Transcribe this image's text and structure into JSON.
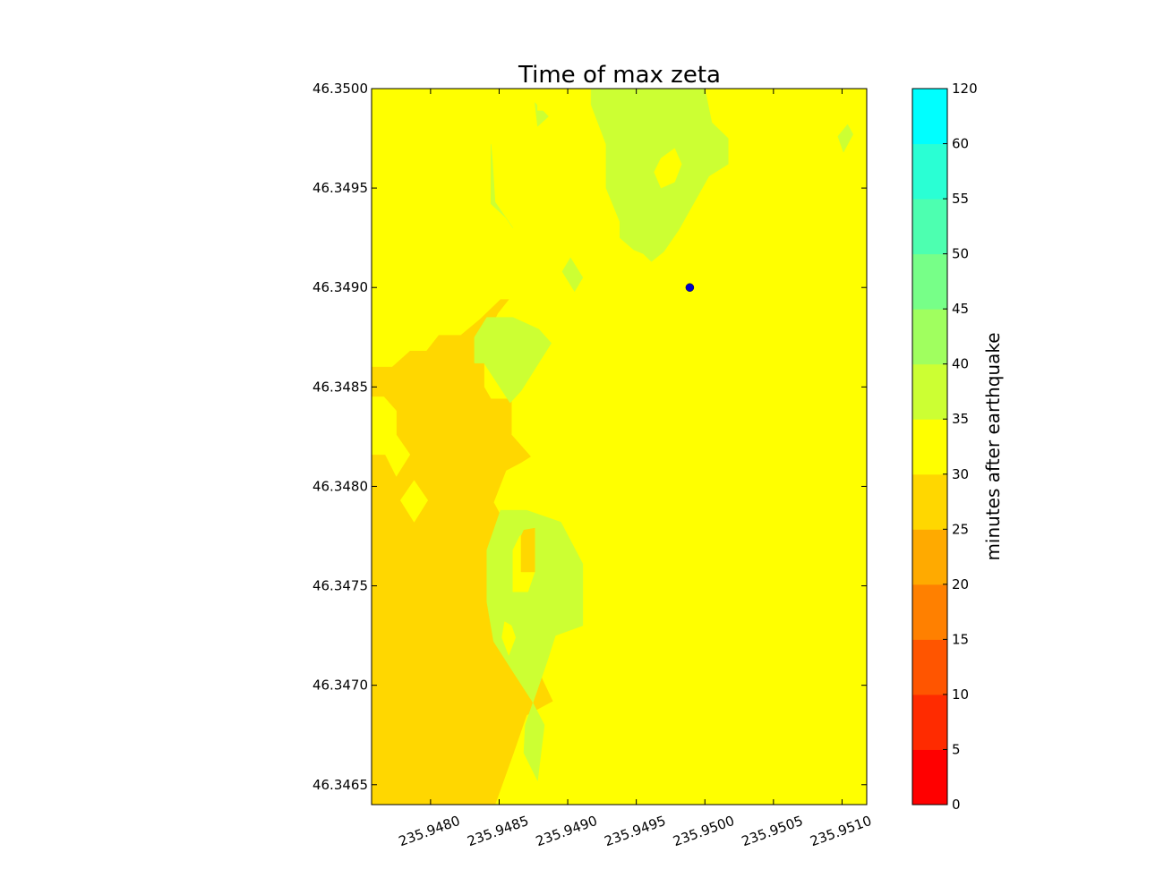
{
  "chart_data": {
    "type": "filled-contour",
    "title": "Time of max zeta",
    "xlabel": "",
    "ylabel": "",
    "xlim": [
      235.94757,
      235.95118
    ],
    "ylim": [
      46.3464,
      46.35
    ],
    "x_ticks": [
      235.948,
      235.9485,
      235.949,
      235.9495,
      235.95,
      235.9505,
      235.951
    ],
    "x_tick_labels": [
      "235.9480",
      "235.9485",
      "235.9490",
      "235.9495",
      "235.9500",
      "235.9505",
      "235.9510"
    ],
    "y_ticks": [
      46.3465,
      46.347,
      46.3475,
      46.348,
      46.3485,
      46.349,
      46.3495,
      46.35
    ],
    "y_tick_labels": [
      "46.3465",
      "46.3470",
      "46.3475",
      "46.3480",
      "46.3485",
      "46.3490",
      "46.3495",
      "46.3500"
    ],
    "background_level": {
      "range": [
        30,
        35
      ],
      "color": "#ffff00"
    },
    "regions": [
      {
        "level": [
          25,
          30
        ],
        "color": "#ffd700",
        "polygon": [
          [
            235.94757,
            46.3464
          ],
          [
            235.94757,
            46.3486
          ],
          [
            235.94772,
            46.3486
          ],
          [
            235.94785,
            46.34868
          ],
          [
            235.94797,
            46.34868
          ],
          [
            235.94806,
            46.34876
          ],
          [
            235.94822,
            46.34876
          ],
          [
            235.94836,
            46.34884
          ],
          [
            235.94851,
            46.34894
          ],
          [
            235.94857,
            46.34894
          ],
          [
            235.94849,
            46.34887
          ],
          [
            235.94841,
            46.34876
          ],
          [
            235.94839,
            46.3487
          ],
          [
            235.94839,
            46.3485
          ],
          [
            235.94844,
            46.34844
          ],
          [
            235.94859,
            46.34844
          ],
          [
            235.94859,
            46.34826
          ],
          [
            235.94873,
            46.34815
          ],
          [
            235.94866,
            46.34812
          ],
          [
            235.94855,
            46.34808
          ],
          [
            235.94846,
            46.34792
          ],
          [
            235.94856,
            46.34779
          ],
          [
            235.94846,
            46.34768
          ],
          [
            235.94847,
            46.34736
          ],
          [
            235.94859,
            46.34725
          ],
          [
            235.94874,
            46.34714
          ],
          [
            235.94889,
            46.34692
          ],
          [
            235.9487,
            46.34685
          ],
          [
            235.9486,
            46.34665
          ],
          [
            235.94847,
            46.3464
          ]
        ]
      },
      {
        "level": [
          30,
          35
        ],
        "color": "#ffff00",
        "polygon": [
          [
            235.94757,
            46.34845
          ],
          [
            235.94766,
            46.34845
          ],
          [
            235.94775,
            46.34838
          ],
          [
            235.94775,
            46.34826
          ],
          [
            235.94785,
            46.34816
          ],
          [
            235.94775,
            46.34805
          ],
          [
            235.94767,
            46.34816
          ],
          [
            235.94757,
            46.34816
          ]
        ]
      },
      {
        "level": [
          30,
          35
        ],
        "color": "#ffff00",
        "polygon": [
          [
            235.94788,
            46.34803
          ],
          [
            235.94798,
            46.34793
          ],
          [
            235.94788,
            46.34782
          ],
          [
            235.94778,
            46.34793
          ]
        ]
      },
      {
        "level": [
          35,
          40
        ],
        "color": "#ccff33",
        "polygon": [
          [
            235.94917,
            46.35
          ],
          [
            235.94917,
            46.34992
          ],
          [
            235.94928,
            46.34972
          ],
          [
            235.94928,
            46.3495
          ],
          [
            235.94938,
            46.34933
          ],
          [
            235.94938,
            46.34925
          ],
          [
            235.94948,
            46.34919
          ],
          [
            235.94955,
            46.34917
          ],
          [
            235.94961,
            46.34913
          ],
          [
            235.9497,
            46.34918
          ],
          [
            235.94981,
            46.34929
          ],
          [
            235.95003,
            46.34956
          ],
          [
            235.95017,
            46.34962
          ],
          [
            235.95017,
            46.34975
          ],
          [
            235.95005,
            46.34983
          ],
          [
            235.95,
            46.35
          ]
        ]
      },
      {
        "level": [
          35,
          40
        ],
        "color": "#ccff33",
        "polygon": [
          [
            235.94832,
            46.34875
          ],
          [
            235.94841,
            46.34885
          ],
          [
            235.9486,
            46.34885
          ],
          [
            235.94879,
            46.34879
          ],
          [
            235.94888,
            46.34872
          ],
          [
            235.94866,
            46.34848
          ],
          [
            235.94858,
            46.34842
          ],
          [
            235.94839,
            46.34862
          ],
          [
            235.94832,
            46.34862
          ]
        ]
      },
      {
        "level": [
          35,
          40
        ],
        "color": "#ccff33",
        "polygon": [
          [
            235.94851,
            46.34788
          ],
          [
            235.9487,
            46.34788
          ],
          [
            235.94895,
            46.34782
          ],
          [
            235.94911,
            46.34761
          ],
          [
            235.94911,
            46.3473
          ],
          [
            235.94891,
            46.34725
          ],
          [
            235.94885,
            46.34712
          ],
          [
            235.94869,
            46.3468
          ],
          [
            235.94868,
            46.34666
          ],
          [
            235.94878,
            46.34652
          ],
          [
            235.94883,
            46.3468
          ],
          [
            235.94874,
            46.34692
          ],
          [
            235.94859,
            46.34708
          ],
          [
            235.94846,
            46.34722
          ],
          [
            235.94841,
            46.34742
          ],
          [
            235.94841,
            46.34768
          ]
        ]
      },
      {
        "level": [
          35,
          40
        ],
        "color": "#ccff33",
        "polygon": [
          [
            235.94844,
            46.34972
          ],
          [
            235.94844,
            46.34942
          ],
          [
            235.94855,
            46.34935
          ],
          [
            235.9486,
            46.3493
          ],
          [
            235.94847,
            46.34943
          ],
          [
            235.94845,
            46.34965
          ]
        ]
      },
      {
        "level": [
          35,
          40
        ],
        "color": "#ccff33",
        "polygon": [
          [
            235.94902,
            46.34915
          ],
          [
            235.94911,
            46.34905
          ],
          [
            235.94905,
            46.34898
          ],
          [
            235.94896,
            46.34908
          ]
        ]
      },
      {
        "level": [
          35,
          40
        ],
        "color": "#ccff33",
        "polygon": [
          [
            235.94876,
            46.34993
          ],
          [
            235.94886,
            46.34986
          ],
          [
            235.94878,
            46.34981
          ]
        ]
      },
      {
        "level": [
          35,
          40
        ],
        "color": "#ccff33",
        "polygon": [
          [
            235.95104,
            46.34982
          ],
          [
            235.95108,
            46.34977
          ],
          [
            235.95101,
            46.34968
          ],
          [
            235.95097,
            46.34976
          ]
        ]
      },
      {
        "level": [
          30,
          35
        ],
        "color": "#ffff00",
        "polygon": [
          [
            235.94968,
            46.34965
          ],
          [
            235.94978,
            46.3497
          ],
          [
            235.94983,
            46.34962
          ],
          [
            235.94978,
            46.34953
          ],
          [
            235.94968,
            46.3495
          ],
          [
            235.94963,
            46.34958
          ]
        ]
      },
      {
        "level": [
          30,
          35
        ],
        "color": "#ffff00",
        "polygon": [
          [
            235.94865,
            46.34775
          ],
          [
            235.94876,
            46.34779
          ],
          [
            235.94876,
            46.34757
          ],
          [
            235.94871,
            46.34747
          ],
          [
            235.9486,
            46.34747
          ],
          [
            235.9486,
            46.34768
          ]
        ]
      },
      {
        "level": [
          25,
          30
        ],
        "color": "#ffd700",
        "polygon": [
          [
            235.94868,
            46.34778
          ],
          [
            235.94876,
            46.34779
          ],
          [
            235.94876,
            46.34757
          ],
          [
            235.94866,
            46.34757
          ],
          [
            235.94866,
            46.34775
          ]
        ]
      },
      {
        "level": [
          30,
          35
        ],
        "color": "#ffff00",
        "polygon": [
          [
            235.94854,
            46.34732
          ],
          [
            235.94859,
            46.3473
          ],
          [
            235.94862,
            46.34724
          ],
          [
            235.94857,
            46.34715
          ],
          [
            235.94852,
            46.34724
          ]
        ]
      },
      {
        "level": [
          30,
          35
        ],
        "color": "#ffff00",
        "polygon": [
          [
            235.94878,
            46.35
          ],
          [
            235.94882,
            46.35
          ],
          [
            235.94882,
            46.34989
          ],
          [
            235.94878,
            46.34989
          ]
        ]
      },
      {
        "level": [
          30,
          35
        ],
        "color": "#ffff00",
        "polygon": [
          [
            235.94847,
            46.35
          ],
          [
            235.94853,
            46.35
          ],
          [
            235.94853,
            46.34999
          ],
          [
            235.94847,
            46.34999
          ]
        ]
      }
    ],
    "point": {
      "x": 235.94989,
      "y": 46.349,
      "color": "#0000cc"
    },
    "colorbar": {
      "label": "minutes after earthquake",
      "levels": [
        0,
        5,
        10,
        15,
        20,
        25,
        30,
        35,
        40,
        45,
        50,
        55,
        60,
        120
      ],
      "level_labels": [
        "0",
        "5",
        "10",
        "15",
        "20",
        "25",
        "30",
        "35",
        "40",
        "45",
        "50",
        "55",
        "60",
        "120"
      ],
      "colors": [
        "#ff0000",
        "#ff2b00",
        "#ff5500",
        "#ff8000",
        "#ffaa00",
        "#ffd700",
        "#ffff00",
        "#ccff33",
        "#a0ff5f",
        "#77ff88",
        "#4dffb0",
        "#2affd4",
        "#00ffff"
      ]
    }
  }
}
